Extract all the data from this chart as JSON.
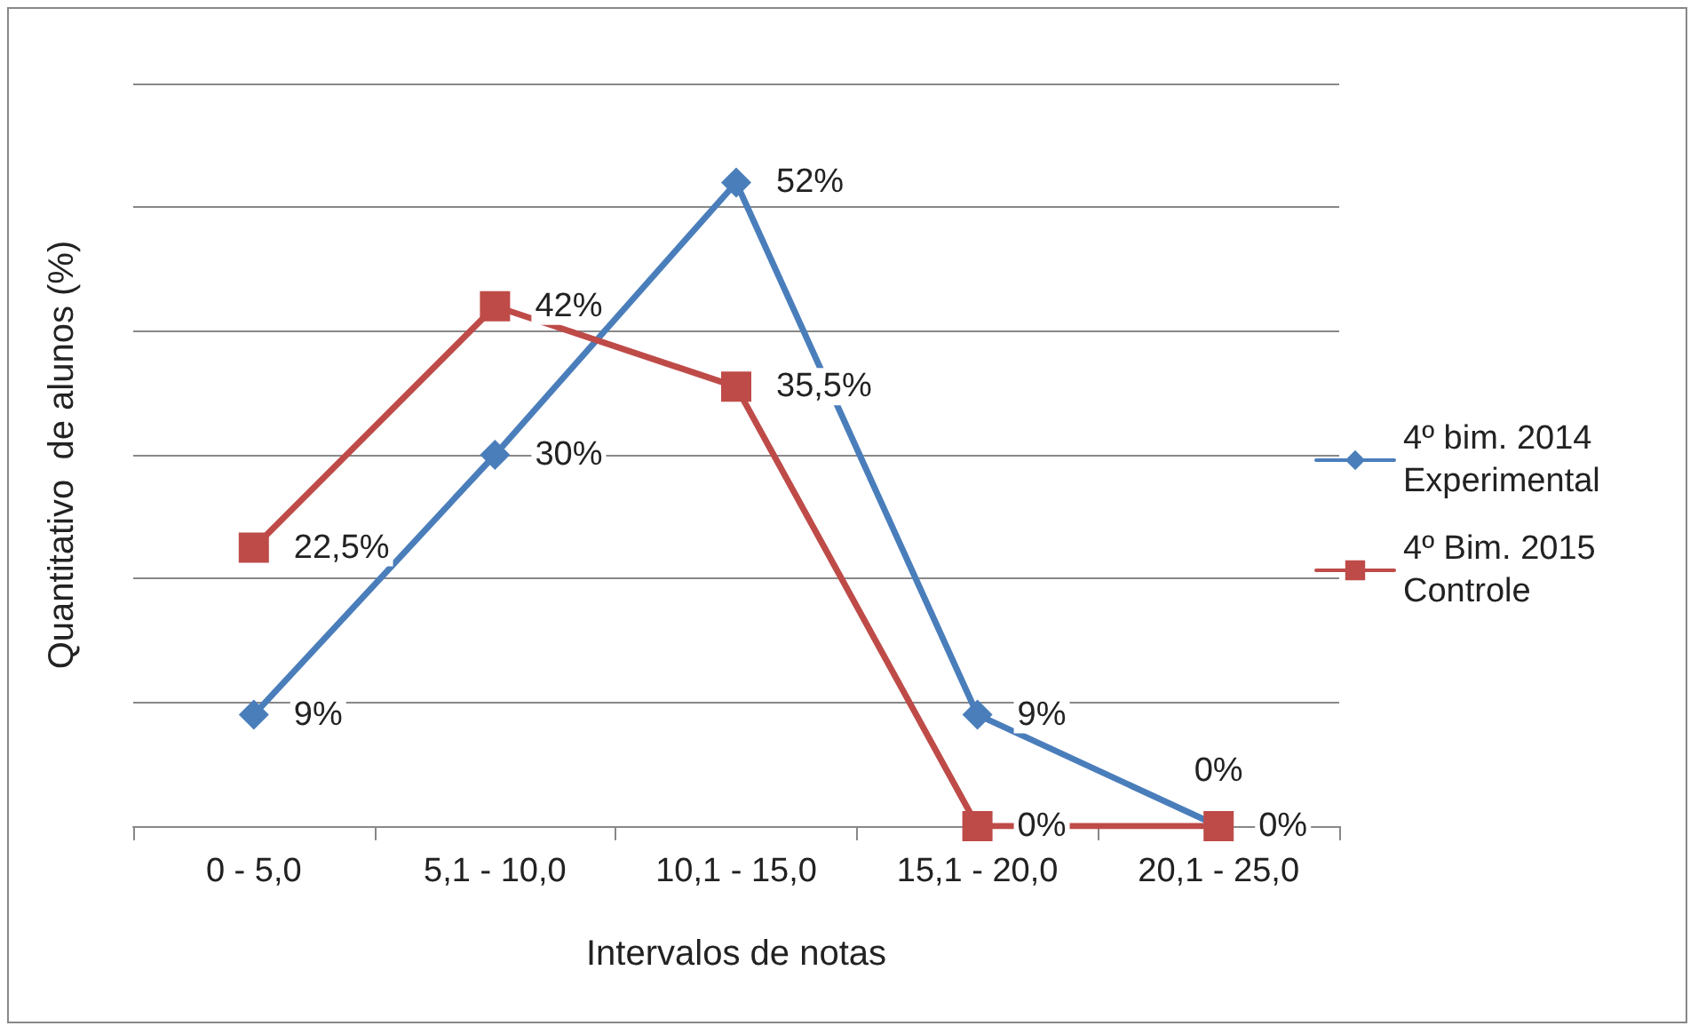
{
  "chart_data": {
    "type": "line",
    "xlabel": "Intervalos de notas",
    "ylabel": "Quantitativo  de alunos (%)",
    "categories": [
      "0 - 5,0",
      "5,1 - 10,0",
      "10,1 - 15,0",
      "15,1 - 20,0",
      "20,1 - 25,0"
    ],
    "series": [
      {
        "name": "4º bim. 2014 Experimental",
        "color": "#4a7ebb",
        "marker": "diamond",
        "values": [
          9,
          30,
          52,
          9,
          0
        ],
        "value_labels": [
          "9%",
          "30%",
          "52%",
          "9%",
          "0%"
        ]
      },
      {
        "name": "4º Bim. 2015 Controle",
        "color": "#be4b48",
        "marker": "square",
        "values": [
          22.5,
          42,
          35.5,
          0,
          0
        ],
        "value_labels": [
          "22,5%",
          "42%",
          "35,5%",
          "0%",
          "0%"
        ]
      }
    ],
    "ylim": [
      0,
      60
    ],
    "yticks": [
      {
        "value": 0,
        "label": null
      },
      {
        "value": 10,
        "label": null
      },
      {
        "value": 20,
        "label": null
      },
      {
        "value": 30,
        "label": null
      },
      {
        "value": 40,
        "label": null
      },
      {
        "value": 50,
        "label": null
      },
      {
        "value": 60,
        "label": null
      }
    ],
    "tick_labels": "x",
    "grid": "y",
    "legend": "right",
    "line_style": "solid"
  }
}
